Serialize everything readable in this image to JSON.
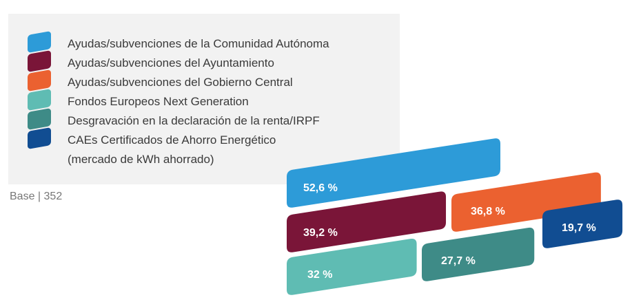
{
  "legend": [
    {
      "label": "Ayudas/subvenciones de la Comunidad Autónoma",
      "color": "#2d9bd8"
    },
    {
      "label": "Ayudas/subvenciones del Ayuntamiento",
      "color": "#7a1538"
    },
    {
      "label": "Ayudas/subvenciones del Gobierno Central",
      "color": "#eb6130"
    },
    {
      "label": "Fondos Europeos Next Generation",
      "color": "#5fbcb3"
    },
    {
      "label": "Desgravación en la declaración de la renta/IRPF",
      "color": "#3e8b87"
    },
    {
      "label": "CAEs Certificados de Ahorro Energético",
      "label2": "(mercado de kWh ahorrado)",
      "color": "#114d92"
    }
  ],
  "base_note": "Base | 352",
  "chart_data": {
    "type": "bar",
    "categories": [
      "Ayudas/subvenciones de la Comunidad Autónoma",
      "Ayudas/subvenciones del Ayuntamiento",
      "Ayudas/subvenciones del Gobierno Central",
      "Fondos Europeos Next Generation",
      "Desgravación en la declaración de la renta/IRPF",
      "CAEs Certificados de Ahorro Energético (mercado de kWh ahorrado)"
    ],
    "values": [
      52.6,
      39.2,
      36.8,
      32,
      27.7,
      19.7
    ],
    "labels": [
      "52,6 %",
      "39,2 %",
      "36,8 %",
      "32 %",
      "27,7 %",
      "19,7 %"
    ],
    "colors": [
      "#2d9bd8",
      "#7a1538",
      "#eb6130",
      "#5fbcb3",
      "#3e8b87",
      "#114d92"
    ],
    "unit": "%",
    "base": 352
  }
}
